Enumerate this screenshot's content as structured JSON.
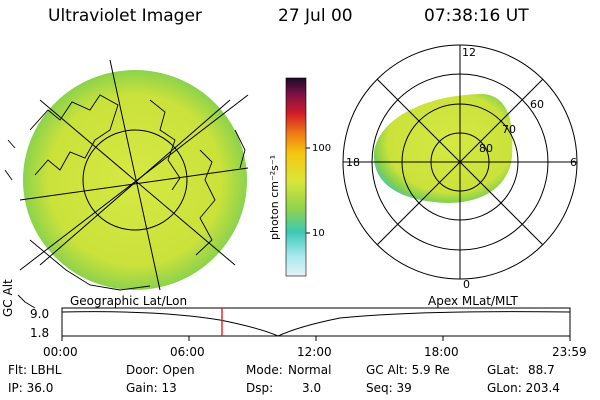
{
  "header": {
    "title": "Ultraviolet Imager",
    "date": "27 Jul 00",
    "time": "07:38:16 UT"
  },
  "colorbar": {
    "unit_label": "photon cm⁻²s⁻¹",
    "ticks": [
      "100",
      "10"
    ]
  },
  "polar_plot": {
    "hour_labels": [
      "12",
      "18",
      "6",
      "0"
    ],
    "lat_labels": [
      "60",
      "70",
      "80"
    ]
  },
  "orbit_panel": {
    "left_title": "Geographic Lat/Lon",
    "right_title": "Apex MLat/MLT",
    "yaxis_label": "GC Alt",
    "y_ticks": [
      "9.0",
      "1.8"
    ],
    "x_ticks": [
      "00:00",
      "06:00",
      "12:00",
      "18:00",
      "23:59"
    ]
  },
  "status": {
    "flt": "Flt: LBHL",
    "door": "Door: Open",
    "mode_label": "Mode:",
    "mode_value": "Normal",
    "gcalt": "GC Alt: 5.9 Re",
    "glat": "GLat:",
    "glat_value": "88.7",
    "ip": "IP: 36.0",
    "gain": "Gain: 13",
    "dsp_label": "Dsp:",
    "dsp_value": "3.0",
    "seq": "Seq: 39",
    "glon": "GLon: 203.4"
  },
  "colors": {
    "image_fill": "#d9e63a",
    "marker": "#e0201a"
  }
}
